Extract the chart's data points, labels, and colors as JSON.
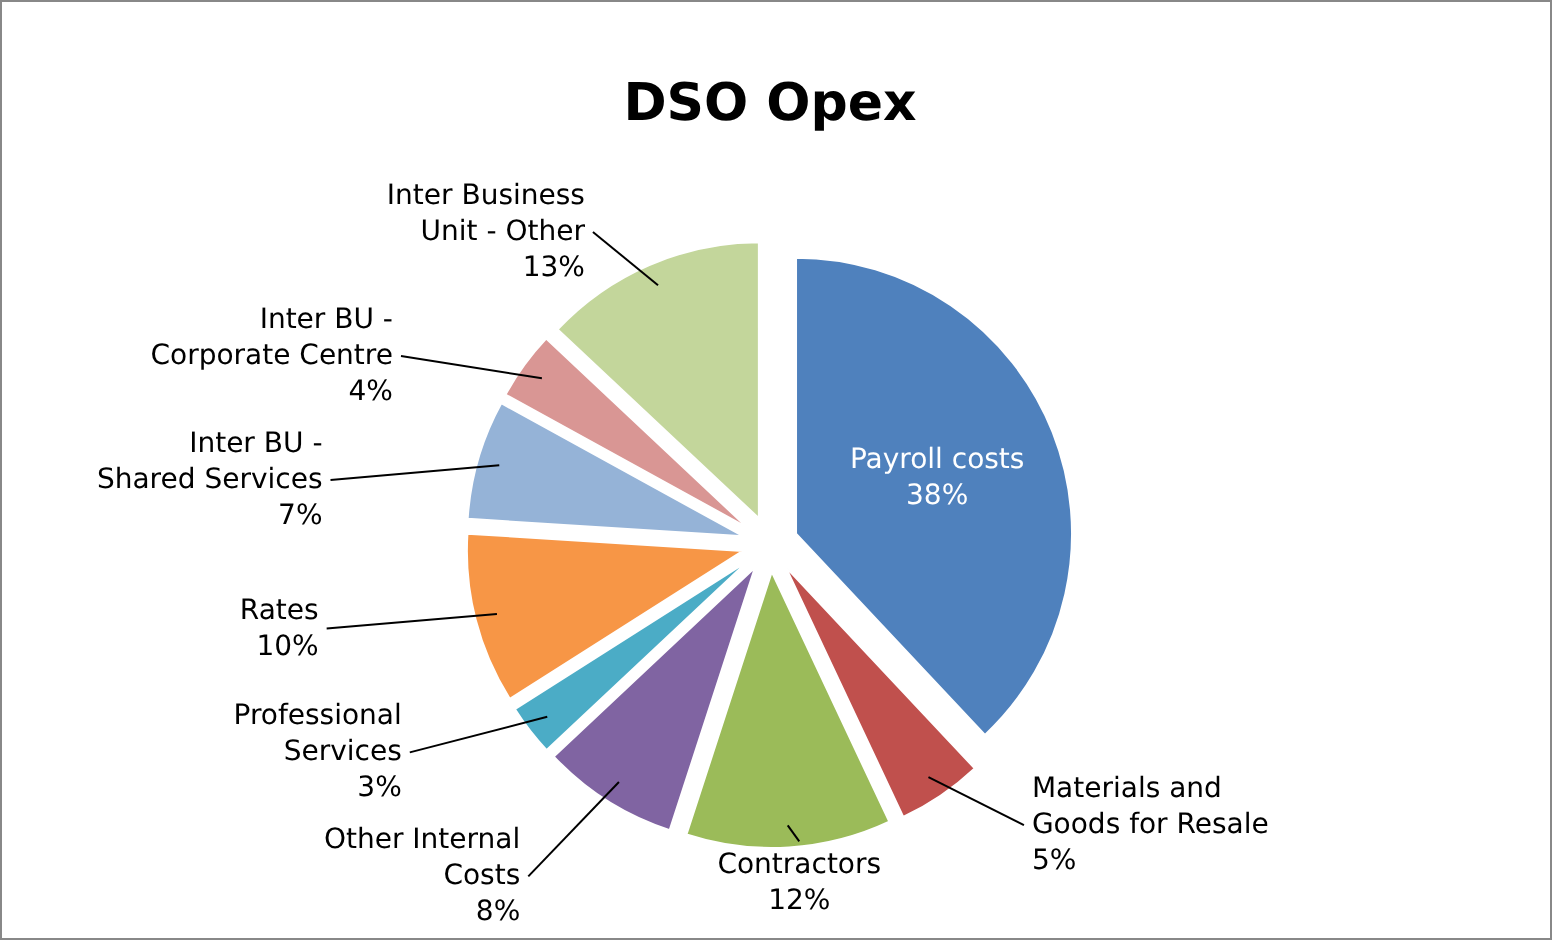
{
  "chart_data": {
    "type": "pie",
    "title": "DSO Opex",
    "categories": [
      "Payroll costs",
      "Materials and Goods for Resale",
      "Contractors",
      "Other Internal Costs",
      "Professional Services",
      "Rates",
      "Inter BU - Shared Services",
      "Inter BU - Corporate Centre",
      "Inter Business Unit - Other"
    ],
    "values": [
      38,
      5,
      12,
      8,
      3,
      10,
      7,
      4,
      13
    ],
    "value_labels": [
      "38%",
      "5%",
      "12%",
      "8%",
      "3%",
      "10%",
      "7%",
      "4%",
      "13%"
    ],
    "colors": [
      "#4f81bd",
      "#c0504d",
      "#9bbb59",
      "#8064a2",
      "#4bacc6",
      "#f79646",
      "#95b3d7",
      "#d99694",
      "#c3d69b"
    ]
  }
}
